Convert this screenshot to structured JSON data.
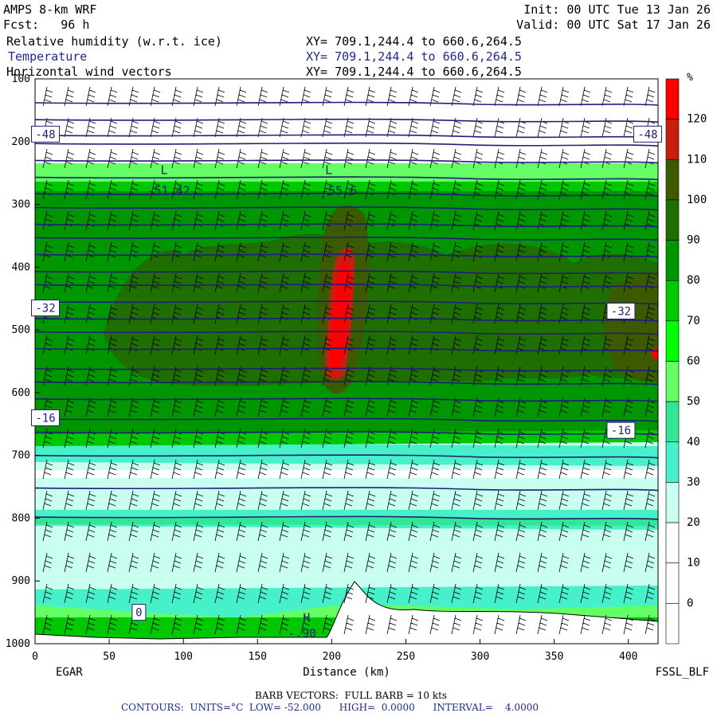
{
  "header": {
    "model": "AMPS 8-km WRF",
    "init": "Init: 00 UTC Tue 13 Jan 26",
    "fcst": "Fcst:   96 h",
    "valid": "Valid: 00 UTC Sat 17 Jan 26",
    "fields": [
      {
        "label": "Relative humidity (w.r.t. ice)",
        "xy": "XY= 709.1,244.4 to 660.6,264.5"
      },
      {
        "label": "Temperature",
        "xy": "XY= 709.1,244.4 to 660.6,264.5"
      },
      {
        "label": "Horizontal wind vectors",
        "xy": "XY= 709.1,244.4 to 660.6,264.5"
      }
    ]
  },
  "footer": {
    "barb": "BARB VECTORS:  FULL BARB = 10 kts",
    "contours": "CONTOURS:  UNITS=°C  LOW= -52.000      HIGH=  0.0000      INTERVAL=    4.0000"
  },
  "chart_data": {
    "type": "heatmap",
    "xlabel": "Distance (km)",
    "x_ticks": [
      0,
      50,
      100,
      150,
      200,
      250,
      300,
      350,
      400
    ],
    "xlim": [
      0,
      420
    ],
    "y_ticks": [
      100,
      200,
      300,
      400,
      500,
      600,
      700,
      800,
      900,
      1000
    ],
    "ylim": [
      1000,
      100
    ],
    "left_station": "EGAR",
    "right_station": "FSSL_BLF",
    "colorbar": {
      "unit": "%",
      "labels": [
        120,
        110,
        100,
        90,
        80,
        70,
        60,
        50,
        40,
        30,
        20,
        10,
        0
      ],
      "colors": [
        "#ff0000",
        "#c81e0f",
        "#3c5a00",
        "#1e6e00",
        "#009600",
        "#00c800",
        "#00ff00",
        "#64ff64",
        "#32e696",
        "#46f0c8",
        "#c8fff0",
        "#ffffff",
        "#ffffff",
        "#ffffff"
      ]
    },
    "contour_labels": [
      {
        "text": "-48",
        "x": 7,
        "p": 188
      },
      {
        "text": "-48",
        "x": 413,
        "p": 188
      },
      {
        "text": "-32",
        "x": 7,
        "p": 465
      },
      {
        "text": "-32",
        "x": 395,
        "p": 470
      },
      {
        "text": "-16",
        "x": 7,
        "p": 640
      },
      {
        "text": "-16",
        "x": 395,
        "p": 660
      },
      {
        "text": "0",
        "x": 70,
        "p": 950
      }
    ],
    "lows": [
      {
        "text": "L",
        "x": 87,
        "p": 252
      },
      {
        "text": "-51.42",
        "x": 90,
        "p": 285
      },
      {
        "text": "L",
        "x": 198,
        "p": 252
      },
      {
        "text": "-55.6",
        "x": 205,
        "p": 285
      }
    ],
    "highs": [
      {
        "text": "H",
        "x": 183,
        "p": 965
      },
      {
        "text": "-.90",
        "x": 180,
        "p": 990
      }
    ]
  }
}
